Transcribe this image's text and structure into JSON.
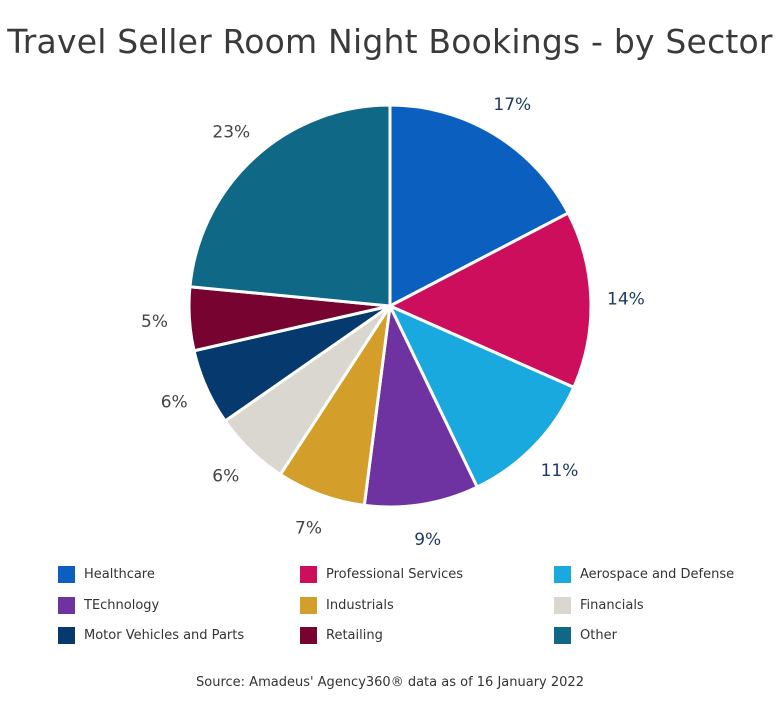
{
  "chart_data": {
    "type": "pie",
    "title": "Travel Seller Room Night Bookings - by Sector",
    "source": "Source: Amadeus' Agency360® data as of 16 January 2022",
    "legend_placement": "bottom",
    "slices": [
      {
        "name": "Healthcare",
        "value": 17,
        "label": "17%",
        "color": "#0b5fbf",
        "label_color": "#1d3a66"
      },
      {
        "name": "Professional Services",
        "value": 14,
        "label": "14%",
        "color": "#cc0e5c",
        "label_color": "#1d3a66"
      },
      {
        "name": "Aerospace and Defense",
        "value": 11,
        "label": "11%",
        "color": "#1aa9df",
        "label_color": "#1d3a66"
      },
      {
        "name": "TEchnology",
        "value": 9,
        "label": "9%",
        "color": "#6e33a1",
        "label_color": "#1d3a66"
      },
      {
        "name": "Industrials",
        "value": 7,
        "label": "7%",
        "color": "#d49e2a",
        "label_color": "#444444"
      },
      {
        "name": "Financials",
        "value": 6,
        "label": "6%",
        "color": "#dad6d0",
        "label_color": "#444444"
      },
      {
        "name": "Motor Vehicles and Parts",
        "value": 6,
        "label": "6%",
        "color": "#063a6e",
        "label_color": "#444444"
      },
      {
        "name": "Retailing",
        "value": 5,
        "label": "5%",
        "color": "#770331",
        "label_color": "#444444"
      },
      {
        "name": "Other",
        "value": 23,
        "label": "23%",
        "color": "#0f6986",
        "label_color": "#444444"
      }
    ]
  }
}
